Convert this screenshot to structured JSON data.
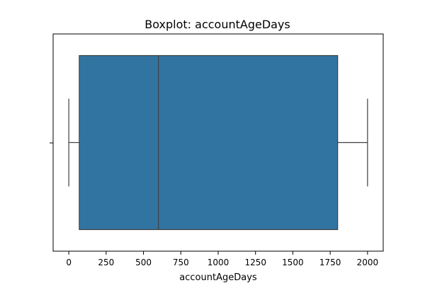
{
  "chart_data": {
    "type": "box",
    "title": "Boxplot: accountAgeDays",
    "xlabel": "accountAgeDays",
    "ylabel": "",
    "xlim": [
      -105,
      2105
    ],
    "xticks": [
      0,
      250,
      500,
      750,
      1000,
      1250,
      1500,
      1750,
      2000
    ],
    "xtick_labels": [
      "0",
      "250",
      "500",
      "750",
      "1000",
      "1250",
      "1500",
      "1750",
      "2000"
    ],
    "grid": false,
    "legend": "none",
    "series": [
      {
        "whisker_low": 0,
        "q1": 70,
        "median": 600,
        "q3": 1800,
        "whisker_high": 2000
      }
    ],
    "colors": {
      "box_fill": "#3274a1",
      "box_edge": "#3f3f3f",
      "whisker": "#3f3f3f"
    }
  }
}
